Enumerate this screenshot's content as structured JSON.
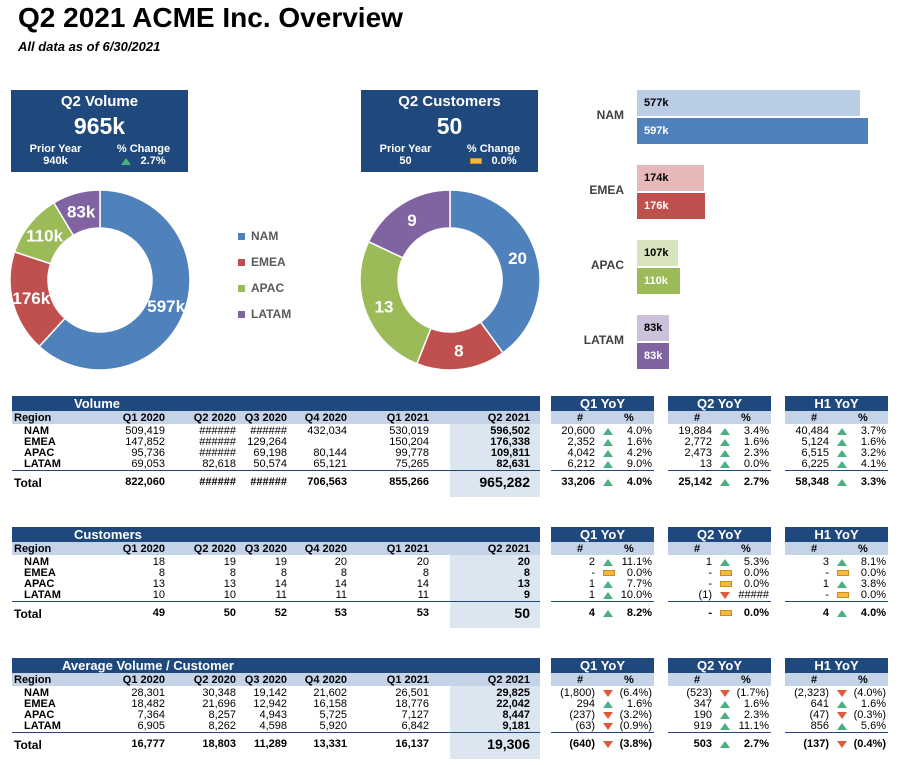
{
  "header": {
    "title": "Q2 2021 ACME Inc. Overview",
    "subtitle": "All data as of 6/30/2021"
  },
  "colors": {
    "nam": "#4f81bd",
    "emea": "#c0504d",
    "apac": "#9bbb59",
    "latam": "#8064a2",
    "nam_prior": "#b9cde5",
    "emea_prior": "#e6b9b8",
    "apac_prior": "#d7e4bc",
    "latam_prior": "#ccc1da",
    "navy": "#1f497d"
  },
  "kpi_volume": {
    "title": "Q2 Volume",
    "value": "965k",
    "prior_label": "Prior Year",
    "prior_value": "940k",
    "change_label": "% Change",
    "change_value": "2.7%",
    "trend": "up"
  },
  "kpi_customers": {
    "title": "Q2 Customers",
    "value": "50",
    "prior_label": "Prior Year",
    "prior_value": "50",
    "change_label": "% Change",
    "change_value": "0.0%",
    "trend": "flat"
  },
  "legend": [
    "NAM",
    "EMEA",
    "APAC",
    "LATAM"
  ],
  "chart_data": [
    {
      "type": "pie",
      "variant": "donut",
      "categories": [
        "NAM",
        "EMEA",
        "APAC",
        "LATAM"
      ],
      "values": [
        596.502,
        176.338,
        109.811,
        82.631
      ],
      "labels": [
        "597k",
        "176k",
        "110k",
        "83k"
      ]
    },
    {
      "type": "pie",
      "variant": "donut",
      "categories": [
        "NAM",
        "EMEA",
        "APAC",
        "LATAM"
      ],
      "values": [
        20,
        8,
        13,
        9
      ],
      "labels": [
        "20",
        "8",
        "13",
        "9"
      ]
    },
    {
      "type": "bar",
      "orientation": "horizontal",
      "categories": [
        "NAM",
        "EMEA",
        "APAC",
        "LATAM"
      ],
      "series": [
        {
          "values": [
            577,
            174,
            107,
            83
          ],
          "labels": [
            "577k",
            "174k",
            "107k",
            "83k"
          ]
        },
        {
          "values": [
            597,
            176,
            110,
            83
          ],
          "labels": [
            "597k",
            "176k",
            "110k",
            "83k"
          ]
        }
      ]
    }
  ],
  "col_headers": [
    "Region",
    "Q1 2020",
    "Q2 2020",
    "Q3 2020",
    "Q4 2020",
    "Q1 2021",
    "Q2 2021"
  ],
  "yoy_titles": [
    "Q1 YoY",
    "Q2 YoY",
    "H1 YoY"
  ],
  "yoy_sub": [
    "#",
    "%"
  ],
  "tables": [
    {
      "name": "Volume",
      "rows": [
        {
          "region": "NAM",
          "vals": [
            "509,419",
            "######",
            "######",
            "432,034",
            "530,019",
            "596,502"
          ]
        },
        {
          "region": "EMEA",
          "vals": [
            "147,852",
            "######",
            "129,264",
            "",
            "150,204",
            "176,338"
          ]
        },
        {
          "region": "APAC",
          "vals": [
            "95,736",
            "######",
            "69,198",
            "80,144",
            "99,778",
            "109,811"
          ]
        },
        {
          "region": "LATAM",
          "vals": [
            "69,053",
            "82,618",
            "50,574",
            "65,121",
            "75,265",
            "82,631"
          ]
        }
      ],
      "total": {
        "label": "Total",
        "vals": [
          "822,060",
          "######",
          "######",
          "706,563",
          "855,266",
          "965,282"
        ]
      },
      "yoy": [
        {
          "rows": [
            [
              "20,600",
              "up",
              "4.0%"
            ],
            [
              "2,352",
              "up",
              "1.6%"
            ],
            [
              "4,042",
              "up",
              "4.2%"
            ],
            [
              "6,212",
              "up",
              "9.0%"
            ]
          ],
          "total": [
            "33,206",
            "up",
            "4.0%"
          ]
        },
        {
          "rows": [
            [
              "19,884",
              "up",
              "3.4%"
            ],
            [
              "2,772",
              "up",
              "1.6%"
            ],
            [
              "2,473",
              "up",
              "2.3%"
            ],
            [
              "13",
              "up",
              "0.0%"
            ]
          ],
          "total": [
            "25,142",
            "up",
            "2.7%"
          ]
        },
        {
          "rows": [
            [
              "40,484",
              "up",
              "3.7%"
            ],
            [
              "5,124",
              "up",
              "1.6%"
            ],
            [
              "6,515",
              "up",
              "3.2%"
            ],
            [
              "6,225",
              "up",
              "4.1%"
            ]
          ],
          "total": [
            "58,348",
            "up",
            "3.3%"
          ]
        }
      ]
    },
    {
      "name": "Customers",
      "rows": [
        {
          "region": "NAM",
          "vals": [
            "18",
            "19",
            "19",
            "20",
            "20",
            "20"
          ]
        },
        {
          "region": "EMEA",
          "vals": [
            "8",
            "8",
            "8",
            "8",
            "8",
            "8"
          ]
        },
        {
          "region": "APAC",
          "vals": [
            "13",
            "13",
            "14",
            "14",
            "14",
            "13"
          ]
        },
        {
          "region": "LATAM",
          "vals": [
            "10",
            "10",
            "11",
            "11",
            "11",
            "9"
          ]
        }
      ],
      "total": {
        "label": "Total",
        "vals": [
          "49",
          "50",
          "52",
          "53",
          "53",
          "50"
        ]
      },
      "yoy": [
        {
          "rows": [
            [
              "2",
              "up",
              "11.1%"
            ],
            [
              "-",
              "flat",
              "0.0%"
            ],
            [
              "1",
              "up",
              "7.7%"
            ],
            [
              "1",
              "up",
              "10.0%"
            ]
          ],
          "total": [
            "4",
            "up",
            "8.2%"
          ]
        },
        {
          "rows": [
            [
              "1",
              "up",
              "5.3%"
            ],
            [
              "-",
              "flat",
              "0.0%"
            ],
            [
              "-",
              "flat",
              "0.0%"
            ],
            [
              "(1)",
              "down",
              "#####"
            ]
          ],
          "total": [
            "-",
            "flat",
            "0.0%"
          ]
        },
        {
          "rows": [
            [
              "3",
              "up",
              "8.1%"
            ],
            [
              "-",
              "flat",
              "0.0%"
            ],
            [
              "1",
              "up",
              "3.8%"
            ],
            [
              "-",
              "flat",
              "0.0%"
            ]
          ],
          "total": [
            "4",
            "up",
            "4.0%"
          ]
        }
      ]
    },
    {
      "name": "Average Volume / Customer",
      "rows": [
        {
          "region": "NAM",
          "vals": [
            "28,301",
            "30,348",
            "19,142",
            "21,602",
            "26,501",
            "29,825"
          ]
        },
        {
          "region": "EMEA",
          "vals": [
            "18,482",
            "21,696",
            "12,942",
            "16,158",
            "18,776",
            "22,042"
          ]
        },
        {
          "region": "APAC",
          "vals": [
            "7,364",
            "8,257",
            "4,943",
            "5,725",
            "7,127",
            "8,447"
          ]
        },
        {
          "region": "LATAM",
          "vals": [
            "6,905",
            "8,262",
            "4,598",
            "5,920",
            "6,842",
            "9,181"
          ]
        }
      ],
      "total": {
        "label": "Total",
        "vals": [
          "16,777",
          "18,803",
          "11,289",
          "13,331",
          "16,137",
          "19,306"
        ]
      },
      "yoy": [
        {
          "rows": [
            [
              "(1,800)",
              "down",
              "(6.4%)"
            ],
            [
              "294",
              "up",
              "1.6%"
            ],
            [
              "(237)",
              "down",
              "(3.2%)"
            ],
            [
              "(63)",
              "down",
              "(0.9%)"
            ]
          ],
          "total": [
            "(640)",
            "down",
            "(3.8%)"
          ]
        },
        {
          "rows": [
            [
              "(523)",
              "down",
              "(1.7%)"
            ],
            [
              "347",
              "up",
              "1.6%"
            ],
            [
              "190",
              "up",
              "2.3%"
            ],
            [
              "919",
              "up",
              "11.1%"
            ]
          ],
          "total": [
            "503",
            "up",
            "2.7%"
          ]
        },
        {
          "rows": [
            [
              "(2,323)",
              "down",
              "(4.0%)"
            ],
            [
              "641",
              "up",
              "1.6%"
            ],
            [
              "(47)",
              "down",
              "(0.3%)"
            ],
            [
              "856",
              "up",
              "5.6%"
            ]
          ],
          "total": [
            "(137)",
            "down",
            "(0.4%)"
          ]
        }
      ]
    }
  ]
}
